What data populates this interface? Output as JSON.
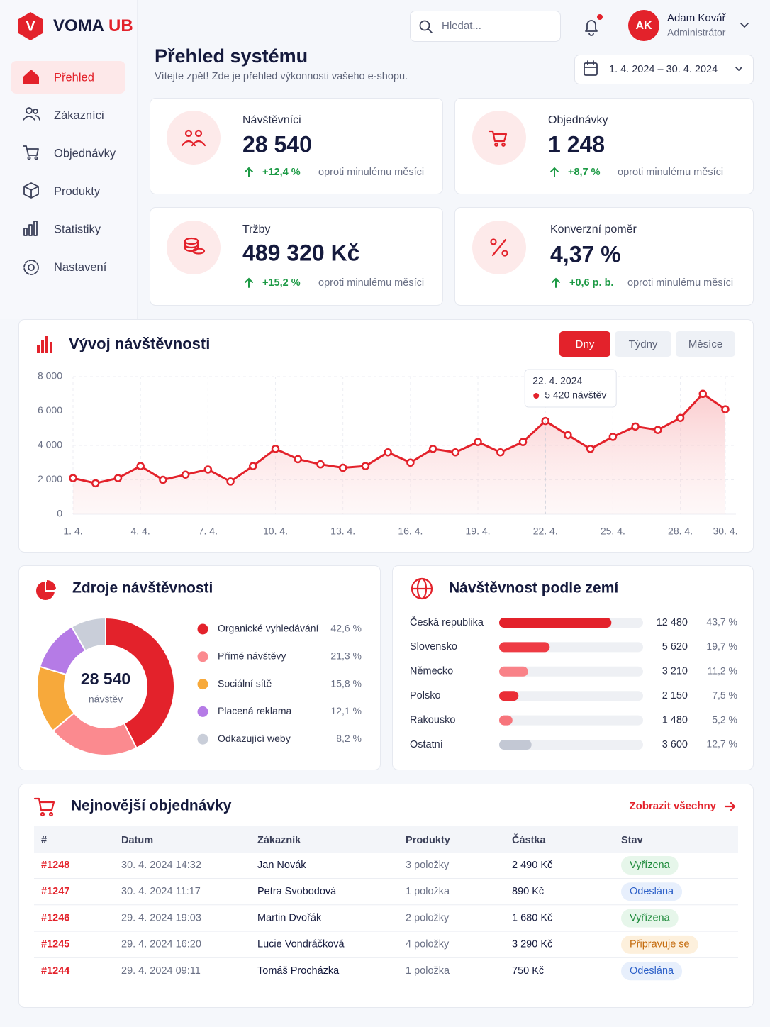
{
  "logo": {
    "icon": "V",
    "name": "VOMA",
    "accent": "UB"
  },
  "nav": [
    {
      "label": "Přehled",
      "active": true
    },
    {
      "label": "Zákazníci",
      "active": false
    },
    {
      "label": "Objednávky",
      "active": false
    },
    {
      "label": "Produkty",
      "active": false
    },
    {
      "label": "Statistiky",
      "active": false
    },
    {
      "label": "Nastavení",
      "active": false
    }
  ],
  "search": {
    "placeholder": "Hledat..."
  },
  "user": {
    "initials": "AK",
    "name": "Adam Kovář",
    "role": "Administrátor"
  },
  "header": {
    "title": "Přehled systému",
    "subtitle": "Vítejte zpět! Zde je přehled výkonnosti vašeho e-shopu.",
    "date_range": "1. 4. 2024 – 30. 4. 2024"
  },
  "kpis": [
    {
      "label": "Návštěvníci",
      "value": "28 540",
      "change": "+12,4 %",
      "note": "oproti minulému měsíci"
    },
    {
      "label": "Objednávky",
      "value": "1 248",
      "change": "+8,7 %",
      "note": "oproti minulému měsíci"
    },
    {
      "label": "Tržby",
      "value": "489 320 Kč",
      "change": "+15,2 %",
      "note": "oproti minulému měsíci"
    },
    {
      "label": "Konverzní poměr",
      "value": "4,37 %",
      "change": "+0,6 p. b.",
      "note": "oproti minulému měsíci"
    }
  ],
  "chart_data": [
    {
      "type": "line",
      "title": "Vývoj návštěvnosti",
      "periods": [
        "Dny",
        "Týdny",
        "Měsíce"
      ],
      "active_period": 0,
      "categories": [
        "1. 4.",
        null,
        null,
        "4. 4.",
        null,
        null,
        "7. 4.",
        null,
        null,
        "10. 4.",
        null,
        null,
        "13. 4.",
        null,
        null,
        "16. 4.",
        null,
        null,
        "19. 4.",
        null,
        null,
        "22. 4.",
        null,
        null,
        "25. 4.",
        null,
        null,
        "28. 4.",
        null,
        "30. 4."
      ],
      "series": [
        {
          "name": "návštěv",
          "color": "#e3222b",
          "values": [
            2100,
            1800,
            2100,
            2800,
            2000,
            2300,
            2600,
            1900,
            2800,
            3800,
            3200,
            2900,
            2700,
            2800,
            3600,
            3000,
            3800,
            3600,
            4200,
            3600,
            4200,
            5420,
            4600,
            3800,
            4500,
            5100,
            4900,
            5600,
            7000,
            6100
          ]
        }
      ],
      "tooltip": {
        "index": 21,
        "date": "22. 4. 2024",
        "label": "5 420 návštěv"
      },
      "ylim": [
        0,
        8000
      ],
      "yticks": [
        0,
        {
          "value": 2000,
          "label": "2 000"
        },
        {
          "value": 4000,
          "label": "4 000"
        },
        {
          "value": 6000,
          "label": "6 000"
        },
        {
          "value": 8000,
          "label": "8 000"
        }
      ],
      "grid": true
    },
    {
      "type": "pie",
      "title": "Zdroje návštěvnosti",
      "center_value": "28 540",
      "center_label": "návštěv",
      "categories": [
        "Organické vyhledávání",
        "Přímé návštěvy",
        "Sociální sítě",
        "Placená reklama",
        "Odkazující weby"
      ],
      "values": [
        42.6,
        21.3,
        15.8,
        12.1,
        8.2
      ],
      "value_labels": [
        "42,6 %",
        "21,3 %",
        "15,8 %",
        "12,1 %",
        "8,2 %"
      ],
      "colors": [
        "#e3222b",
        "#fb8a8f",
        "#f7a93b",
        "#b57be6",
        "#c9ced9"
      ]
    },
    {
      "type": "bar",
      "orientation": "horizontal",
      "title": "Návštěvnost podle zemí",
      "categories": [
        "Česká republika",
        "Slovensko",
        "Německo",
        "Polsko",
        "Rakousko",
        "Ostatní"
      ],
      "values": [
        12480,
        5620,
        3210,
        2150,
        1480,
        3600
      ],
      "value_labels": [
        "12 480",
        "5 620",
        "3 210",
        "2 150",
        "1 480",
        "3 600"
      ],
      "shares": [
        43.7,
        19.7,
        11.2,
        7.5,
        5.2,
        12.7
      ],
      "share_labels": [
        "43,7 %",
        "19,7 %",
        "11,2 %",
        "7,5 %",
        "5,2 %",
        "12,7 %"
      ],
      "colors": [
        "#e3222b",
        "#ee3b44",
        "#f98288",
        "#ea2c35",
        "#f7747b",
        "#c3c8d4"
      ],
      "xlim": [
        0,
        16000
      ]
    }
  ],
  "orders": {
    "title": "Nejnovější objednávky",
    "link": "Zobrazit všechny",
    "columns": [
      "#",
      "Datum",
      "Zákazník",
      "Produkty",
      "Částka",
      "Stav"
    ],
    "rows": [
      [
        "#1248",
        "30. 4. 2024 14:32",
        "Jan Novák",
        "3 položky",
        "2 490 Kč",
        "Vyřízena"
      ],
      [
        "#1247",
        "30. 4. 2024 11:17",
        "Petra Svobodová",
        "1 položka",
        "890 Kč",
        "Odeslána"
      ],
      [
        "#1246",
        "29. 4. 2024 19:03",
        "Martin Dvořák",
        "2 položky",
        "1 680 Kč",
        "Vyřízena"
      ],
      [
        "#1245",
        "29. 4. 2024 16:20",
        "Lucie Vondráčková",
        "4 položky",
        "3 290 Kč",
        "Připravuje se"
      ],
      [
        "#1244",
        "29. 4. 2024 09:11",
        "Tomáš Procházka",
        "1 položka",
        "750 Kč",
        "Odeslána"
      ]
    ],
    "tones": [
      "green",
      "blue",
      "green",
      "orange",
      "blue"
    ]
  }
}
